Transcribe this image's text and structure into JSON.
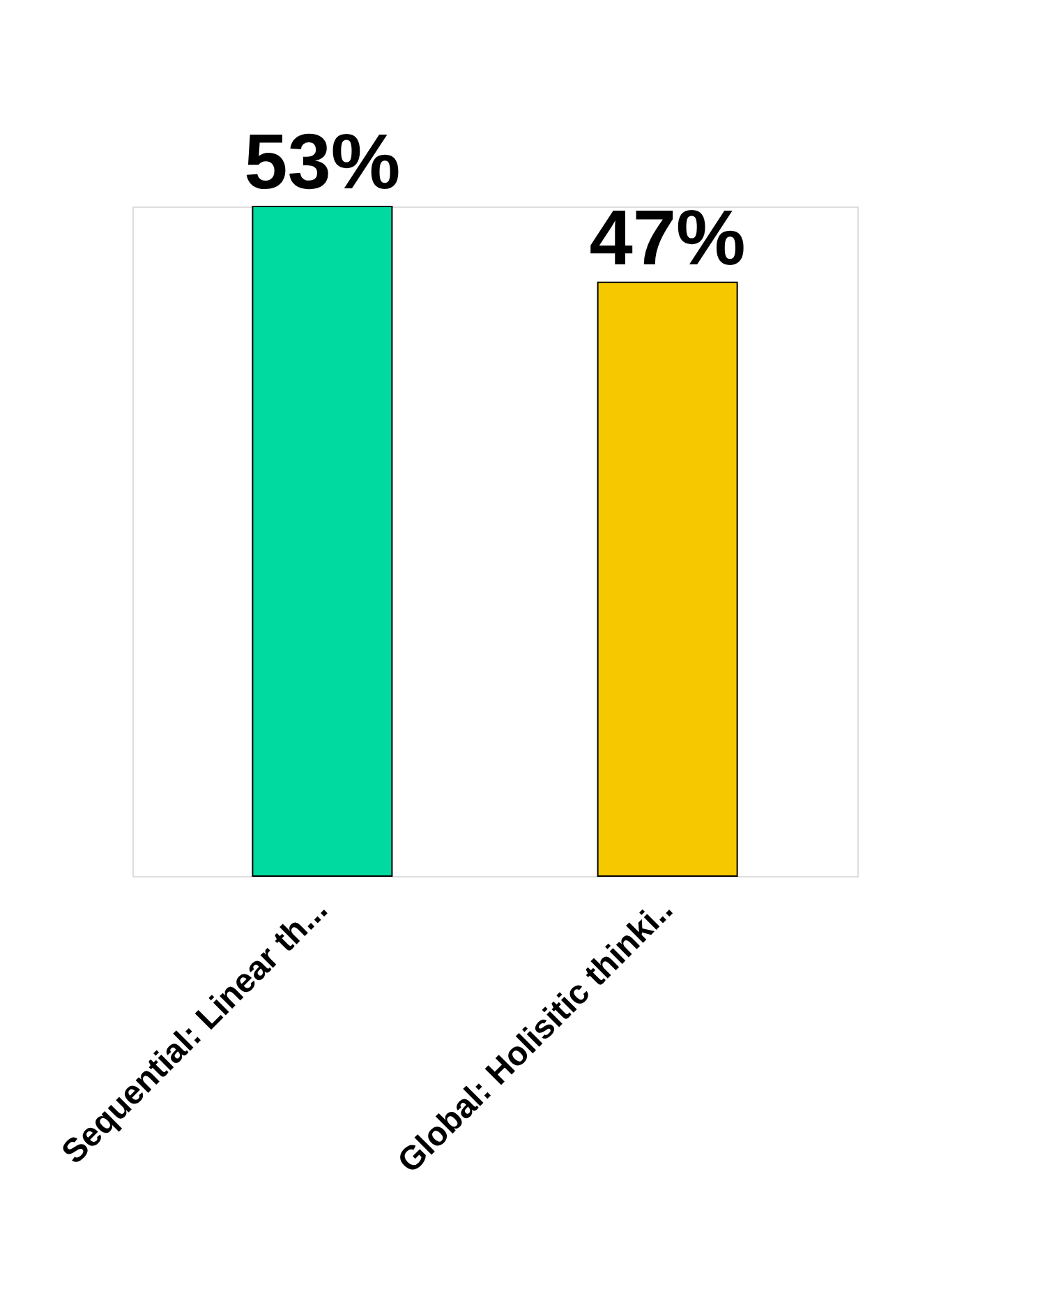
{
  "chart_data": {
    "type": "bar",
    "categories": [
      "Sequential: Linear th...",
      "Global: Holisitic thinki.."
    ],
    "values": [
      53,
      47
    ],
    "colors": [
      "#00d9a0",
      "#f5c800"
    ],
    "value_labels": [
      "53%",
      "47%"
    ]
  }
}
